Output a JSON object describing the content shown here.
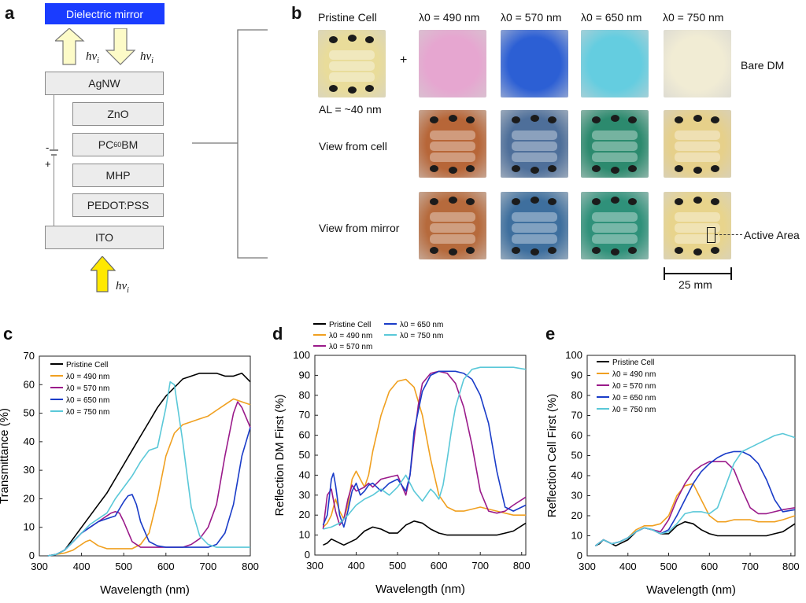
{
  "panel_letters": {
    "a": "a",
    "b": "b",
    "c": "c",
    "d": "d",
    "e": "e"
  },
  "panel_a": {
    "mirror": "Dielectric mirror",
    "hv_top_left": "hν",
    "hv_top_right": "hν",
    "hv_bottom": "hν",
    "hv_sub": "i",
    "layers": [
      "AgNW",
      "ZnO",
      "PC60BM",
      "MHP",
      "PEDOT:PSS",
      "ITO"
    ],
    "minus": "-",
    "plus": "+"
  },
  "panel_b": {
    "headers": [
      "Pristine Cell",
      "λ0 = 490 nm",
      "λ0 = 570 nm",
      "λ0 = 650 nm",
      "λ0 = 750 nm"
    ],
    "plus_sign": "+",
    "al_label": "AL = ~40 nm",
    "row_labels": [
      "View from cell",
      "View from mirror"
    ],
    "bare_dm": "Bare DM",
    "active_area": "Active Area",
    "scale": "25 mm",
    "colors": {
      "pristine": "#e9dc9a",
      "bare": [
        "#e6a6d0",
        "#2c5fd4",
        "#64cde0",
        "#f1ecd4"
      ],
      "cell": [
        "#b76638",
        "#4e6f9a",
        "#2c8a6e",
        "#e6d08a"
      ],
      "mirror": [
        "#b66a3c",
        "#3e6f9e",
        "#2f917a",
        "#e8d48c"
      ]
    }
  },
  "chart_data": [
    {
      "panel": "c",
      "type": "line",
      "xlabel": "Wavelength (nm)",
      "ylabel": "Transmittance  (%)",
      "xlim": [
        300,
        800
      ],
      "ylim": [
        0,
        70
      ],
      "xticks": [
        300,
        400,
        500,
        600,
        700,
        800
      ],
      "yticks": [
        0,
        10,
        20,
        30,
        40,
        50,
        60,
        70
      ],
      "legend_position": "top-left",
      "series": [
        {
          "name": "Pristine Cell",
          "color": "#000000",
          "x": [
            320,
            340,
            360,
            380,
            400,
            420,
            440,
            460,
            480,
            500,
            520,
            540,
            560,
            580,
            600,
            620,
            640,
            660,
            680,
            700,
            720,
            740,
            760,
            780,
            800
          ],
          "y": [
            0,
            0.5,
            2,
            6,
            10,
            14,
            18,
            22,
            27,
            32,
            37,
            42,
            47,
            52,
            56,
            59,
            62,
            63,
            64,
            64,
            64,
            63,
            63,
            64,
            61
          ]
        },
        {
          "name": "λ0 = 490 nm",
          "color": "#f0a020",
          "x": [
            320,
            340,
            360,
            380,
            400,
            410,
            420,
            440,
            460,
            480,
            500,
            520,
            540,
            560,
            580,
            600,
            620,
            640,
            660,
            680,
            700,
            720,
            740,
            760,
            780,
            800
          ],
          "y": [
            0,
            0.5,
            1,
            2,
            4,
            5,
            5.5,
            3.5,
            2.5,
            2.5,
            2.5,
            2.5,
            4,
            8,
            20,
            35,
            43,
            46,
            47,
            48,
            49,
            51,
            53,
            55,
            54,
            53
          ]
        },
        {
          "name": "λ0 = 570 nm",
          "color": "#9a1a8a",
          "x": [
            320,
            340,
            360,
            380,
            400,
            420,
            440,
            460,
            470,
            480,
            490,
            500,
            520,
            540,
            560,
            580,
            600,
            620,
            640,
            660,
            680,
            700,
            720,
            740,
            760,
            770,
            780,
            800
          ],
          "y": [
            0,
            0.5,
            2,
            5,
            8,
            10,
            12,
            14,
            15,
            15.5,
            15,
            12,
            5,
            3,
            3,
            3,
            3,
            3,
            3,
            4,
            6,
            10,
            18,
            35,
            50,
            54,
            52,
            45
          ]
        },
        {
          "name": "λ0 = 650 nm",
          "color": "#1a3cc8",
          "x": [
            320,
            340,
            360,
            380,
            400,
            420,
            440,
            460,
            480,
            500,
            510,
            520,
            530,
            540,
            560,
            580,
            600,
            620,
            640,
            660,
            680,
            700,
            720,
            740,
            760,
            780,
            800
          ],
          "y": [
            0,
            0.5,
            2,
            5,
            8,
            10,
            12,
            13,
            14,
            19,
            21,
            21.5,
            18,
            12,
            5,
            3.5,
            3,
            3,
            3,
            3,
            3,
            3,
            4,
            8,
            18,
            35,
            45
          ]
        },
        {
          "name": "λ0 = 750 nm",
          "color": "#5ac8d8",
          "x": [
            320,
            340,
            360,
            380,
            400,
            420,
            440,
            460,
            480,
            500,
            520,
            540,
            560,
            580,
            600,
            610,
            620,
            640,
            660,
            680,
            700,
            720,
            740,
            760,
            780,
            800
          ],
          "y": [
            0,
            0.5,
            2,
            5,
            8,
            11,
            13,
            15,
            20,
            24,
            28,
            33,
            37,
            38,
            52,
            61,
            60,
            40,
            17,
            7,
            4,
            3,
            3,
            3,
            3,
            3
          ]
        }
      ]
    },
    {
      "panel": "d",
      "type": "line",
      "xlabel": "Wavelength (nm)",
      "ylabel": "Reflection DM First  (%)",
      "xlim": [
        300,
        810
      ],
      "ylim": [
        0,
        100
      ],
      "xticks": [
        300,
        400,
        500,
        600,
        700,
        800
      ],
      "yticks": [
        0,
        10,
        20,
        30,
        40,
        50,
        60,
        70,
        80,
        90,
        100
      ],
      "legend_position": "top",
      "series": [
        {
          "name": "Pristine Cell",
          "color": "#000000",
          "x": [
            320,
            330,
            340,
            350,
            360,
            370,
            380,
            400,
            420,
            440,
            460,
            480,
            500,
            520,
            540,
            560,
            580,
            600,
            620,
            640,
            660,
            680,
            700,
            720,
            740,
            760,
            780,
            810
          ],
          "y": [
            5,
            6,
            8,
            7,
            6,
            5,
            6,
            8,
            12,
            14,
            13,
            11,
            11,
            15,
            17,
            16,
            13,
            11,
            10,
            10,
            10,
            10,
            10,
            10,
            10,
            11,
            12,
            16
          ]
        },
        {
          "name": "λ0 = 490 nm",
          "color": "#f0a020",
          "x": [
            320,
            330,
            340,
            350,
            360,
            370,
            380,
            390,
            400,
            410,
            420,
            430,
            440,
            460,
            480,
            500,
            520,
            540,
            560,
            580,
            600,
            620,
            640,
            660,
            680,
            700,
            720,
            740,
            760,
            780,
            810
          ],
          "y": [
            14,
            16,
            20,
            28,
            22,
            18,
            25,
            38,
            42,
            38,
            34,
            40,
            52,
            70,
            82,
            87,
            88,
            84,
            70,
            48,
            30,
            24,
            22,
            22,
            23,
            24,
            23,
            22,
            21,
            20,
            20
          ]
        },
        {
          "name": "λ0 = 570 nm",
          "color": "#9a1a8a",
          "x": [
            320,
            330,
            340,
            350,
            360,
            370,
            380,
            390,
            400,
            410,
            420,
            430,
            440,
            460,
            480,
            500,
            520,
            530,
            540,
            550,
            560,
            580,
            600,
            620,
            640,
            660,
            680,
            700,
            720,
            740,
            760,
            780,
            810
          ],
          "y": [
            13,
            30,
            33,
            22,
            15,
            18,
            28,
            35,
            32,
            33,
            34,
            36,
            34,
            38,
            39,
            40,
            30,
            40,
            58,
            75,
            86,
            91,
            92,
            91,
            86,
            74,
            55,
            32,
            22,
            21,
            22,
            25,
            29
          ]
        },
        {
          "name": "λ0 = 650 nm",
          "color": "#1a3cc8",
          "x": [
            320,
            330,
            340,
            345,
            350,
            360,
            370,
            380,
            390,
            400,
            410,
            420,
            430,
            440,
            460,
            480,
            500,
            520,
            530,
            540,
            560,
            580,
            600,
            620,
            640,
            660,
            680,
            700,
            720,
            740,
            760,
            780,
            810
          ],
          "y": [
            15,
            20,
            38,
            41,
            35,
            20,
            14,
            22,
            32,
            36,
            30,
            32,
            35,
            36,
            32,
            36,
            38,
            32,
            40,
            62,
            82,
            90,
            92,
            92,
            92,
            91,
            88,
            80,
            66,
            42,
            24,
            22,
            25
          ]
        },
        {
          "name": "λ0 = 750 nm",
          "color": "#5ac8d8",
          "x": [
            320,
            340,
            360,
            380,
            400,
            420,
            440,
            460,
            480,
            500,
            520,
            540,
            560,
            580,
            590,
            600,
            610,
            620,
            630,
            640,
            660,
            680,
            700,
            720,
            740,
            760,
            780,
            810
          ],
          "y": [
            13,
            14,
            16,
            20,
            25,
            28,
            30,
            33,
            30,
            34,
            40,
            32,
            27,
            33,
            31,
            28,
            35,
            48,
            62,
            74,
            88,
            93,
            94,
            94,
            94,
            94,
            94,
            93
          ]
        }
      ]
    },
    {
      "panel": "e",
      "type": "line",
      "xlabel": "Wavelength (nm)",
      "ylabel": "Reflection Cell First  (%)",
      "xlim": [
        300,
        810
      ],
      "ylim": [
        0,
        100
      ],
      "xticks": [
        300,
        400,
        500,
        600,
        700,
        800
      ],
      "yticks": [
        0,
        10,
        20,
        30,
        40,
        50,
        60,
        70,
        80,
        90,
        100
      ],
      "legend_position": "top-left",
      "series": [
        {
          "name": "Pristine Cell",
          "color": "#000000",
          "x": [
            320,
            330,
            340,
            350,
            360,
            370,
            380,
            400,
            420,
            440,
            460,
            480,
            500,
            520,
            540,
            560,
            580,
            600,
            620,
            640,
            660,
            680,
            700,
            720,
            740,
            760,
            780,
            810
          ],
          "y": [
            5,
            6,
            8,
            7,
            6,
            5,
            6,
            8,
            12,
            14,
            13,
            11,
            11,
            15,
            17,
            16,
            13,
            11,
            10,
            10,
            10,
            10,
            10,
            10,
            10,
            11,
            12,
            16
          ]
        },
        {
          "name": "λ0 = 490 nm",
          "color": "#f0a020",
          "x": [
            320,
            340,
            360,
            380,
            400,
            420,
            440,
            460,
            480,
            500,
            520,
            540,
            560,
            580,
            600,
            620,
            640,
            660,
            680,
            700,
            720,
            740,
            760,
            780,
            810
          ],
          "y": [
            5,
            8,
            6,
            7,
            9,
            13,
            15,
            15,
            16,
            20,
            30,
            35,
            36,
            28,
            20,
            17,
            17,
            18,
            18,
            18,
            17,
            17,
            17,
            18,
            20
          ]
        },
        {
          "name": "λ0 = 570 nm",
          "color": "#9a1a8a",
          "x": [
            320,
            340,
            360,
            380,
            400,
            420,
            440,
            460,
            480,
            500,
            520,
            540,
            560,
            580,
            600,
            620,
            640,
            660,
            680,
            700,
            720,
            740,
            760,
            780,
            810
          ],
          "y": [
            5,
            8,
            6,
            7,
            9,
            12,
            14,
            13,
            12,
            18,
            28,
            36,
            42,
            45,
            47,
            47,
            47,
            43,
            33,
            24,
            21,
            21,
            22,
            23,
            24
          ]
        },
        {
          "name": "λ0 = 650 nm",
          "color": "#1a3cc8",
          "x": [
            320,
            340,
            360,
            380,
            400,
            420,
            440,
            460,
            480,
            500,
            520,
            540,
            560,
            580,
            600,
            620,
            640,
            660,
            680,
            700,
            720,
            740,
            760,
            780,
            810
          ],
          "y": [
            5,
            8,
            6,
            7,
            9,
            12,
            14,
            13,
            11,
            13,
            20,
            28,
            36,
            42,
            46,
            49,
            51,
            52,
            52,
            50,
            46,
            38,
            28,
            22,
            23
          ]
        },
        {
          "name": "λ0 = 750 nm",
          "color": "#5ac8d8",
          "x": [
            320,
            340,
            360,
            380,
            400,
            420,
            440,
            460,
            480,
            500,
            520,
            540,
            560,
            580,
            600,
            620,
            640,
            660,
            680,
            700,
            720,
            740,
            760,
            780,
            810
          ],
          "y": [
            5,
            8,
            6,
            7,
            9,
            12,
            14,
            13,
            11,
            12,
            16,
            21,
            22,
            22,
            21,
            24,
            35,
            46,
            52,
            54,
            56,
            58,
            60,
            61,
            59
          ]
        }
      ]
    }
  ]
}
